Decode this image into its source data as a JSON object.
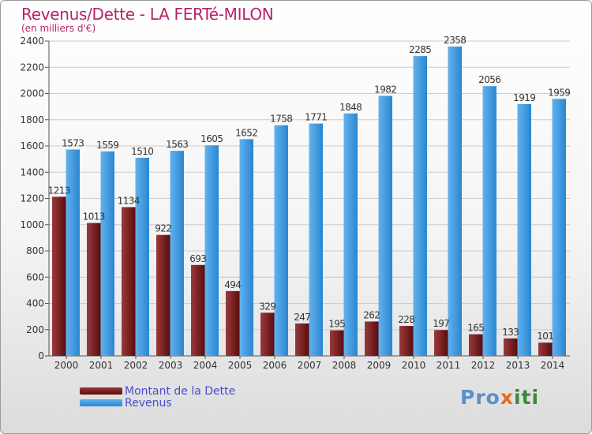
{
  "title": "Revenus/Dette - LA FERTé-MILON",
  "subtitle": "(en milliers d'€)",
  "colors": {
    "debt_dark": "#5a0d0f",
    "debt_light": "#9a3a3b",
    "revenue_dark": "#2a86cf",
    "revenue_light": "#62b2ee",
    "grid": "#cccccc",
    "title": "#b7236a",
    "legend_text": "#4a4acf"
  },
  "legend": {
    "debt_label": "Montant de la Dette",
    "revenue_label": "Revenus"
  },
  "logo": {
    "parts": [
      "Pro",
      "x",
      "iti"
    ],
    "colors": [
      "#5c8fc9",
      "#e86a21",
      "#3d8a35"
    ]
  },
  "chart_data": {
    "type": "bar",
    "title": "Revenus/Dette - LA FERTé-MILON",
    "subtitle": "(en milliers d'€)",
    "categories": [
      "2000",
      "2001",
      "2002",
      "2003",
      "2004",
      "2005",
      "2006",
      "2007",
      "2008",
      "2009",
      "2010",
      "2011",
      "2012",
      "2013",
      "2014"
    ],
    "series": [
      {
        "name": "Montant de la Dette",
        "values": [
          1213,
          1013,
          1134,
          922,
          693,
          494,
          329,
          247,
          195,
          262,
          228,
          197,
          165,
          133,
          101
        ]
      },
      {
        "name": "Revenus",
        "values": [
          1573,
          1559,
          1510,
          1563,
          1605,
          1652,
          1758,
          1771,
          1848,
          1982,
          2285,
          2358,
          2056,
          1919,
          1959
        ]
      }
    ],
    "data_labels": [
      [
        "1213",
        "1013",
        "1134",
        "922",
        "693",
        "494",
        "329",
        "247",
        "195",
        "262",
        "228",
        "197",
        "165",
        "133",
        "101"
      ],
      [
        "1573",
        "1559",
        "1510",
        "1563",
        "1605",
        "1652",
        "1758",
        "1771",
        "1848",
        "1982",
        "2285",
        "2358",
        "2056",
        "1919",
        "1959"
      ]
    ],
    "ylim": [
      0,
      2400
    ],
    "yticks": [
      0,
      200,
      400,
      600,
      800,
      1000,
      1200,
      1400,
      1600,
      1800,
      2000,
      2200,
      2400
    ],
    "grid": true,
    "legend_position": "bottom-left"
  }
}
